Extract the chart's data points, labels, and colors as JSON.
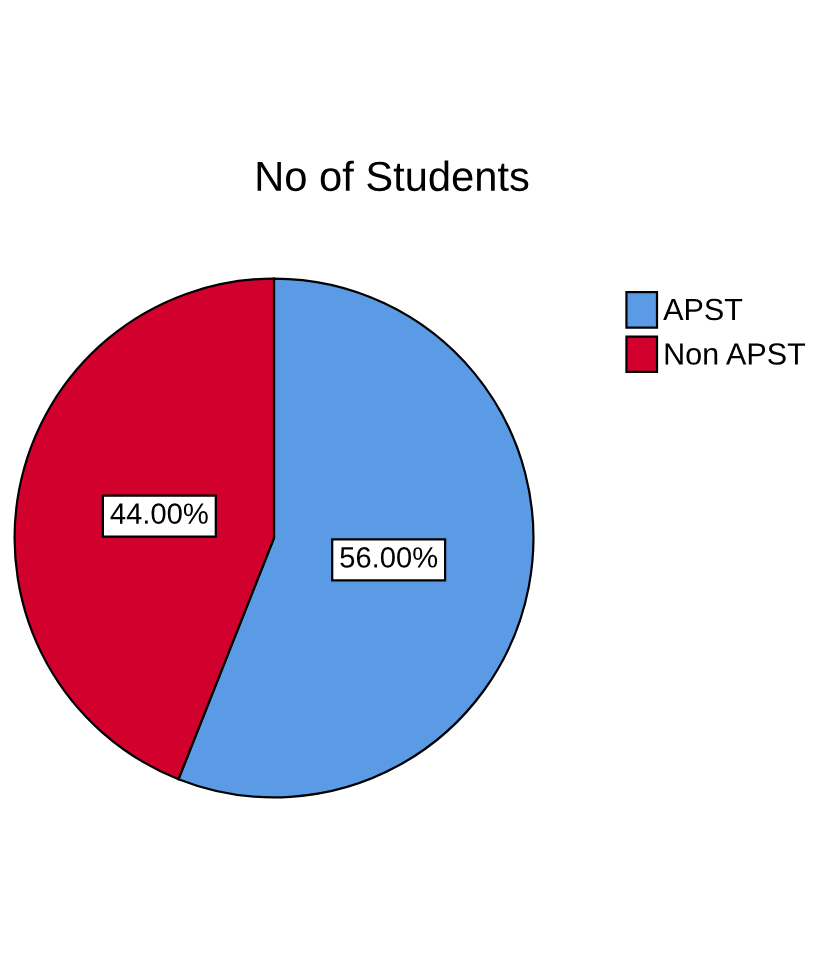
{
  "chart_data": {
    "type": "pie",
    "title": "No of Students",
    "categories": [
      "APST",
      "Non APST"
    ],
    "values": [
      56,
      44
    ],
    "colors": [
      "#5b9be6",
      "#d2002d"
    ],
    "value_labels": [
      "56.00%",
      "44.00%"
    ],
    "legend": "top right"
  }
}
